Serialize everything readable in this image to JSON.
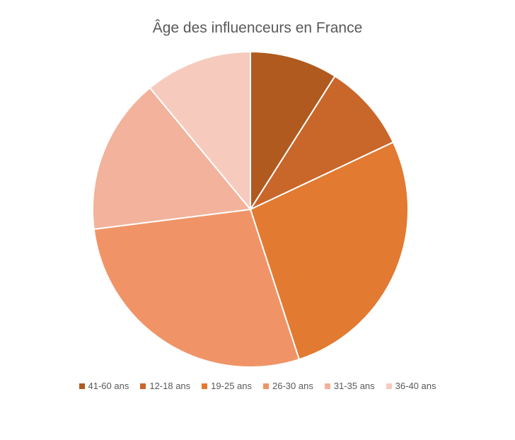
{
  "chart_data": {
    "type": "pie",
    "title": "Âge des influenceurs en France",
    "legend_position": "bottom",
    "categories": [
      "41-60 ans",
      "12-18 ans",
      "19-25 ans",
      "26-30 ans",
      "31-35 ans",
      "36-40 ans"
    ],
    "values": [
      9,
      9,
      27,
      28,
      16,
      11
    ],
    "colors": [
      "#B05A1F",
      "#C9662A",
      "#E27A31",
      "#F09468",
      "#F2B29B",
      "#F6CBBE"
    ]
  }
}
